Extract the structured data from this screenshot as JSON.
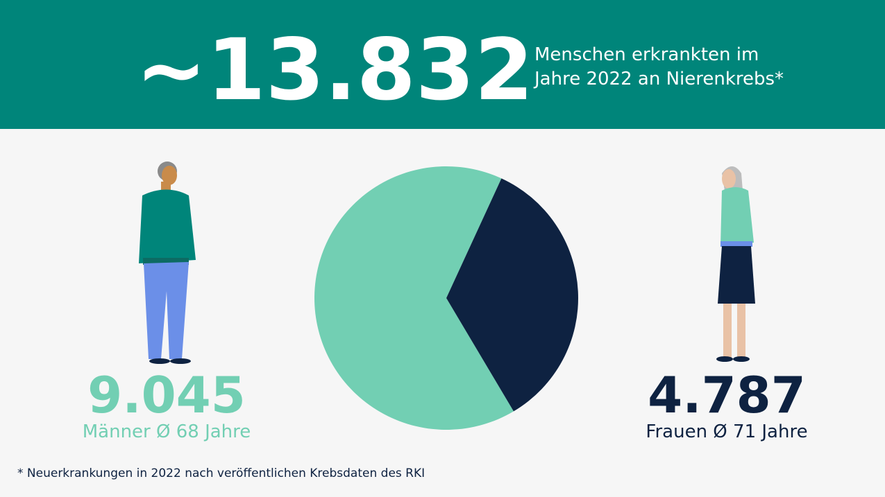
{
  "chart_data": {
    "type": "pie",
    "title": "~13.832",
    "subtitle": [
      "Menschen erkrankten im",
      "Jahre 2022 an Nierenkrebs*"
    ],
    "categories": [
      "Männer Ø 68 Jahre",
      "Frauen Ø 71 Jahre"
    ],
    "values": [
      9045,
      4787
    ],
    "value_labels": [
      "9.045",
      "4.787"
    ],
    "colors": [
      "#72cfb3",
      "#0e2241"
    ],
    "note": "* Neuerkrankungen in 2022 nach veröffentlichen Krebsdaten des RKI"
  }
}
